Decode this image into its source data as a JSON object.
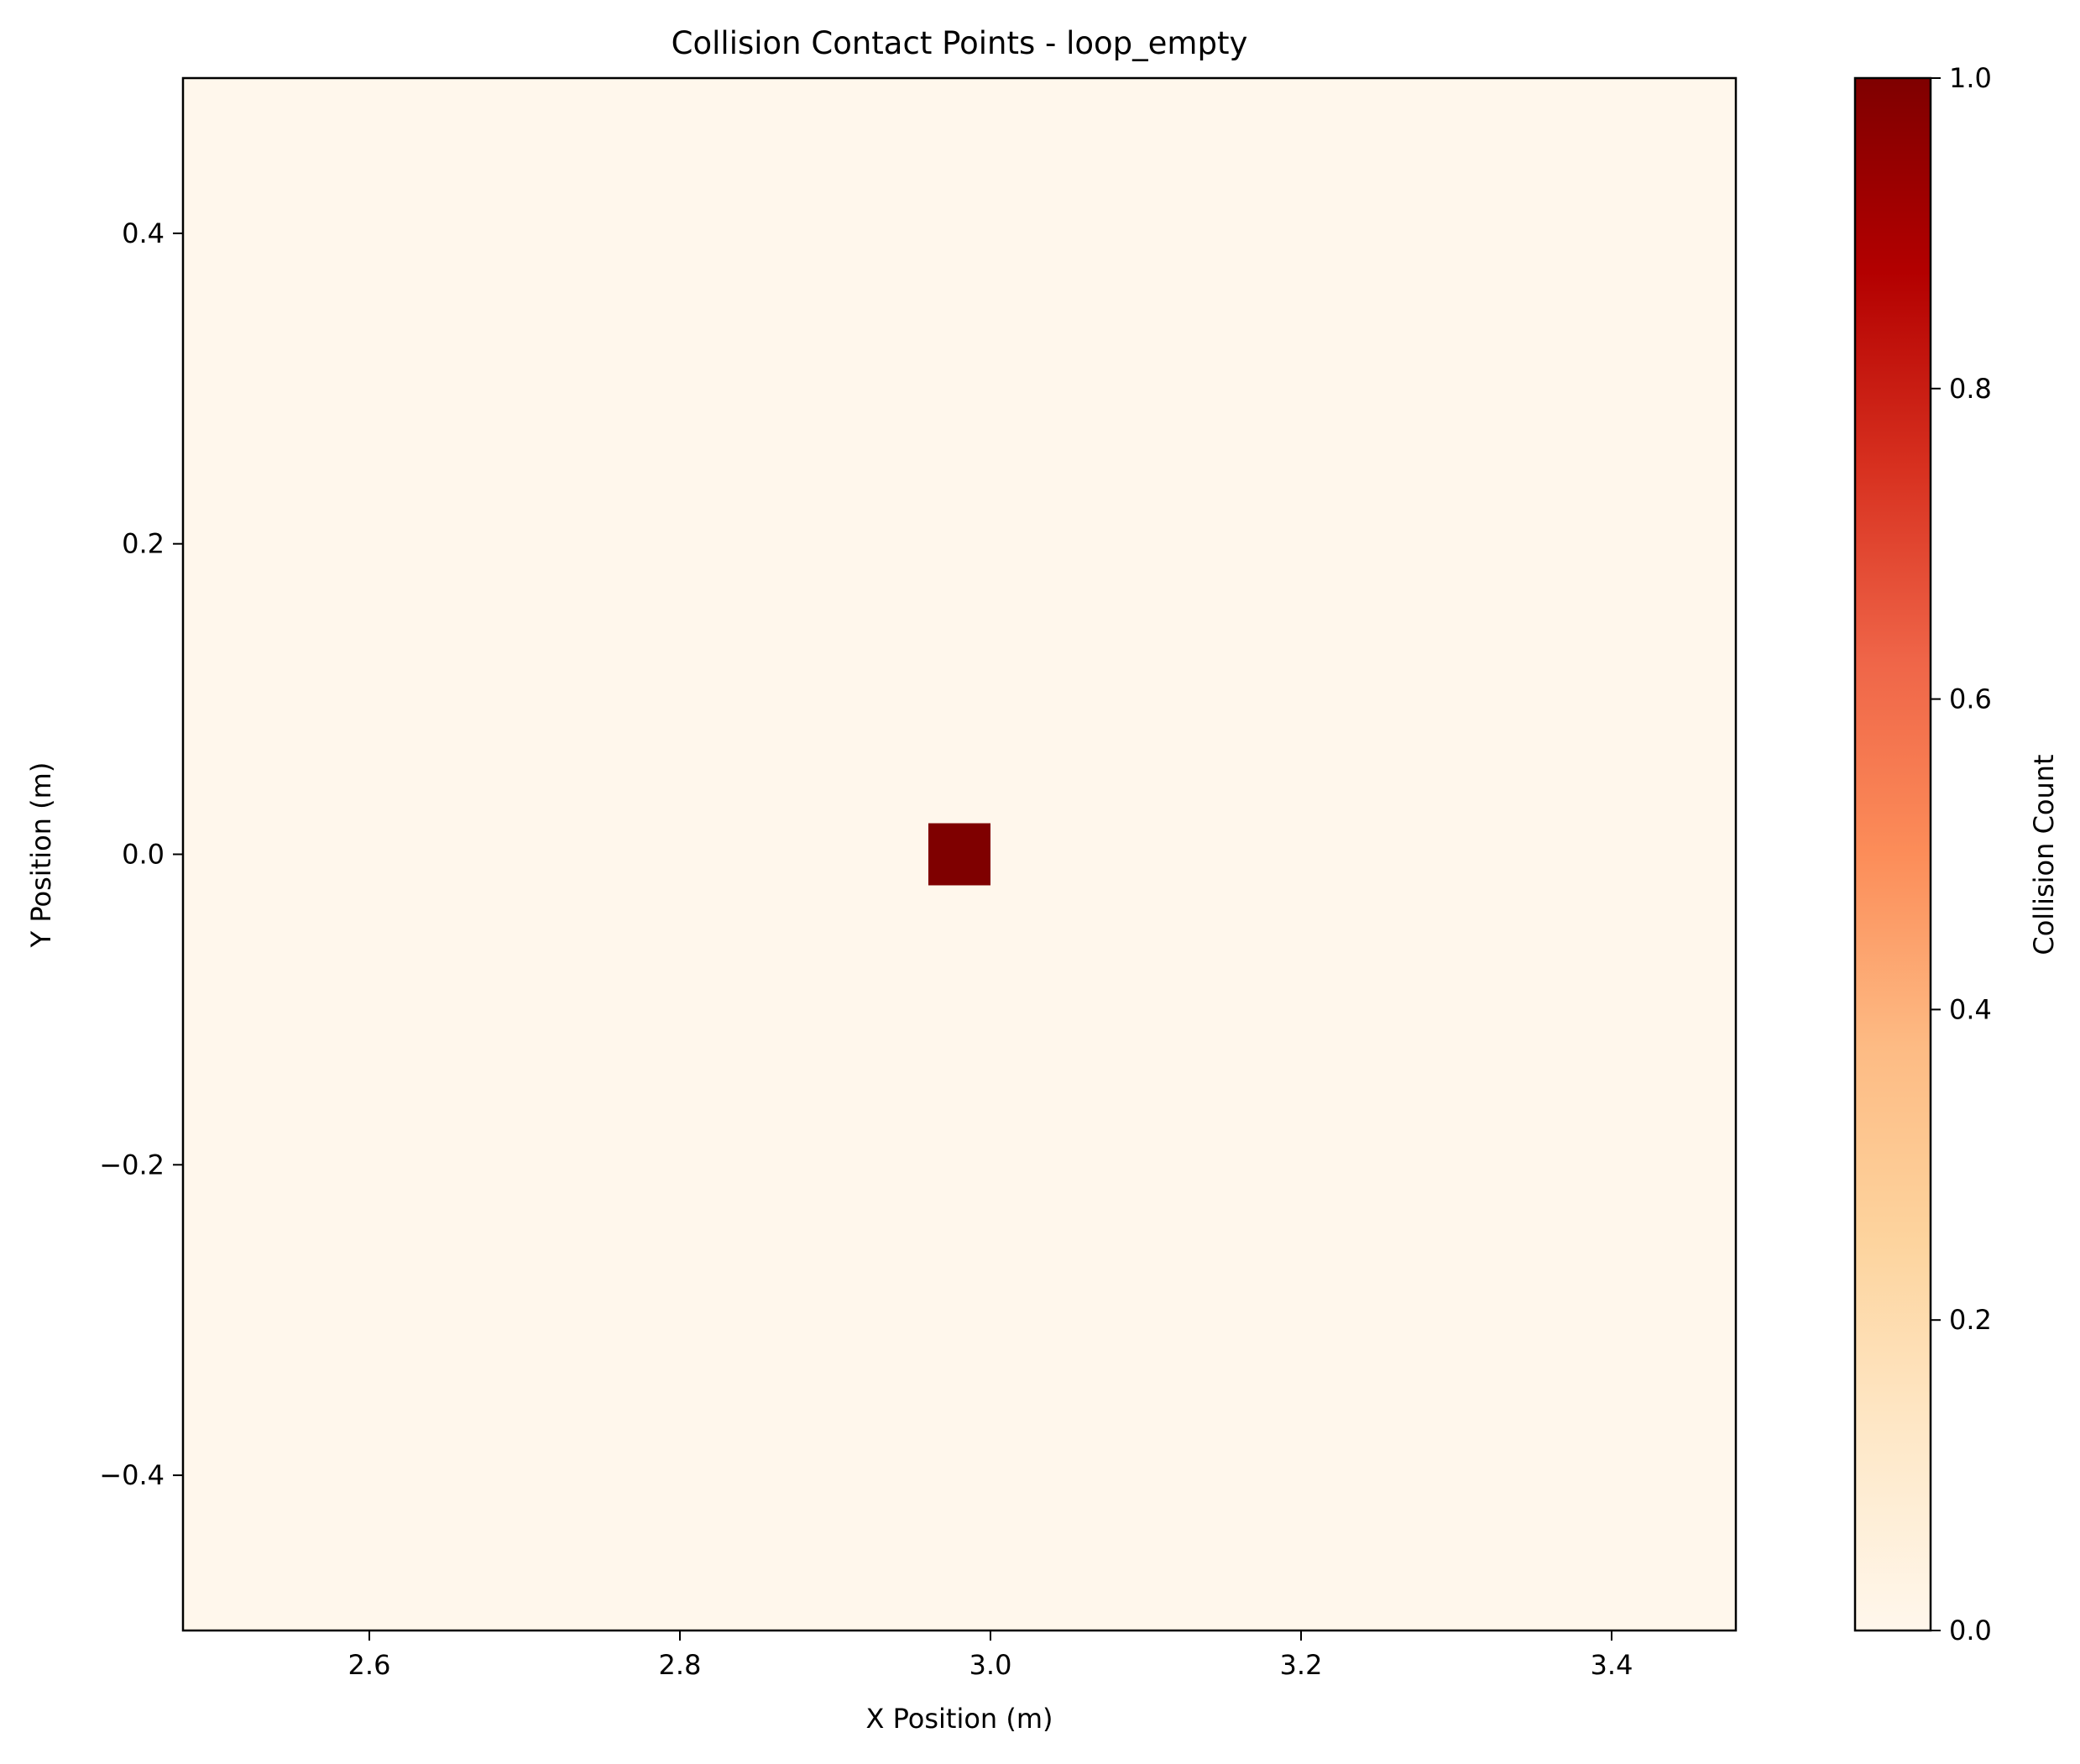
{
  "chart_data": {
    "type": "heatmap",
    "title": "Collision Contact Points - loop_empty",
    "xlabel": "X Position (m)",
    "ylabel": "Y Position (m)",
    "xlim": [
      2.48,
      3.48
    ],
    "ylim": [
      -0.5,
      0.5
    ],
    "xticks": [
      2.6,
      2.8,
      3.0,
      3.2,
      3.4
    ],
    "xtick_labels": [
      "2.6",
      "2.8",
      "3.0",
      "3.2",
      "3.4"
    ],
    "yticks": [
      -0.4,
      -0.2,
      0.0,
      0.2,
      0.4
    ],
    "ytick_labels": [
      "−0.4",
      "−0.2",
      "0.0",
      "0.2",
      "0.4"
    ],
    "cells": [
      {
        "x0": 2.96,
        "x1": 3.0,
        "y0": -0.02,
        "y1": 0.02,
        "value": 1
      }
    ],
    "background_value": 0,
    "colorbar": {
      "label": "Collision Count",
      "range": [
        0.0,
        1.0
      ],
      "ticks": [
        0.0,
        0.2,
        0.4,
        0.6,
        0.8,
        1.0
      ],
      "tick_labels": [
        "0.0",
        "0.2",
        "0.4",
        "0.6",
        "0.8",
        "1.0"
      ],
      "colormap": "OrRd",
      "stops": [
        "#fff7ec",
        "#fee8c8",
        "#fdd49e",
        "#fdbb84",
        "#fc8d59",
        "#ef6548",
        "#d7301f",
        "#b30000",
        "#7f0000"
      ]
    },
    "grid": false
  }
}
